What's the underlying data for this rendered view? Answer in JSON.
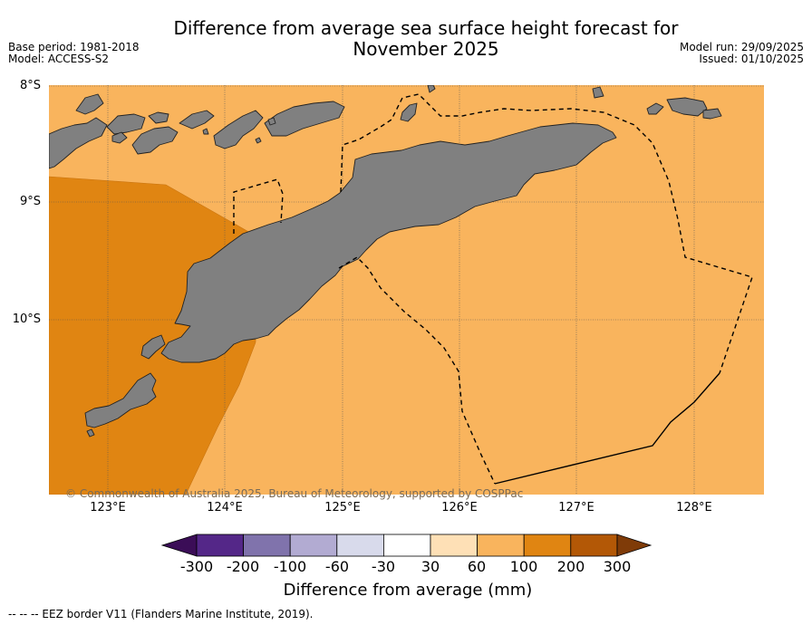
{
  "title_line1": "Difference from average sea surface height forecast for",
  "title_line2": "November 2025",
  "meta_left": {
    "base_period": "Base period: 1981-2018",
    "model": "Model: ACCESS-S2"
  },
  "meta_right": {
    "model_run": "Model run: 29/09/2025",
    "issued": "Issued: 01/10/2025"
  },
  "map": {
    "lat_labels": [
      "8°S",
      "9°S",
      "10°S"
    ],
    "lon_labels": [
      "123°E",
      "124°E",
      "125°E",
      "126°E",
      "127°E",
      "128°E"
    ],
    "copyright": "© Commonwealth of Australia 2025, Bureau of Meteorology, supported by COSPPac",
    "colors": {
      "ocean_60_100": "#f9b45d",
      "ocean_100_200": "#e08512",
      "land": "#808080"
    }
  },
  "colorbar": {
    "tick_labels": [
      "-300",
      "-200",
      "-100",
      "-60",
      "-30",
      "30",
      "60",
      "100",
      "200",
      "300"
    ],
    "colors": [
      "#3b0d57",
      "#542788",
      "#8073ac",
      "#b2abd2",
      "#d8daeb",
      "#ffffff",
      "#fee0b6",
      "#f9b45d",
      "#e08512",
      "#b35806",
      "#7f3b08"
    ],
    "title": "Difference from average (mm)"
  },
  "legend_note": "--  --  -- EEZ border V11 (Flanders Marine Institute, 2019)."
}
